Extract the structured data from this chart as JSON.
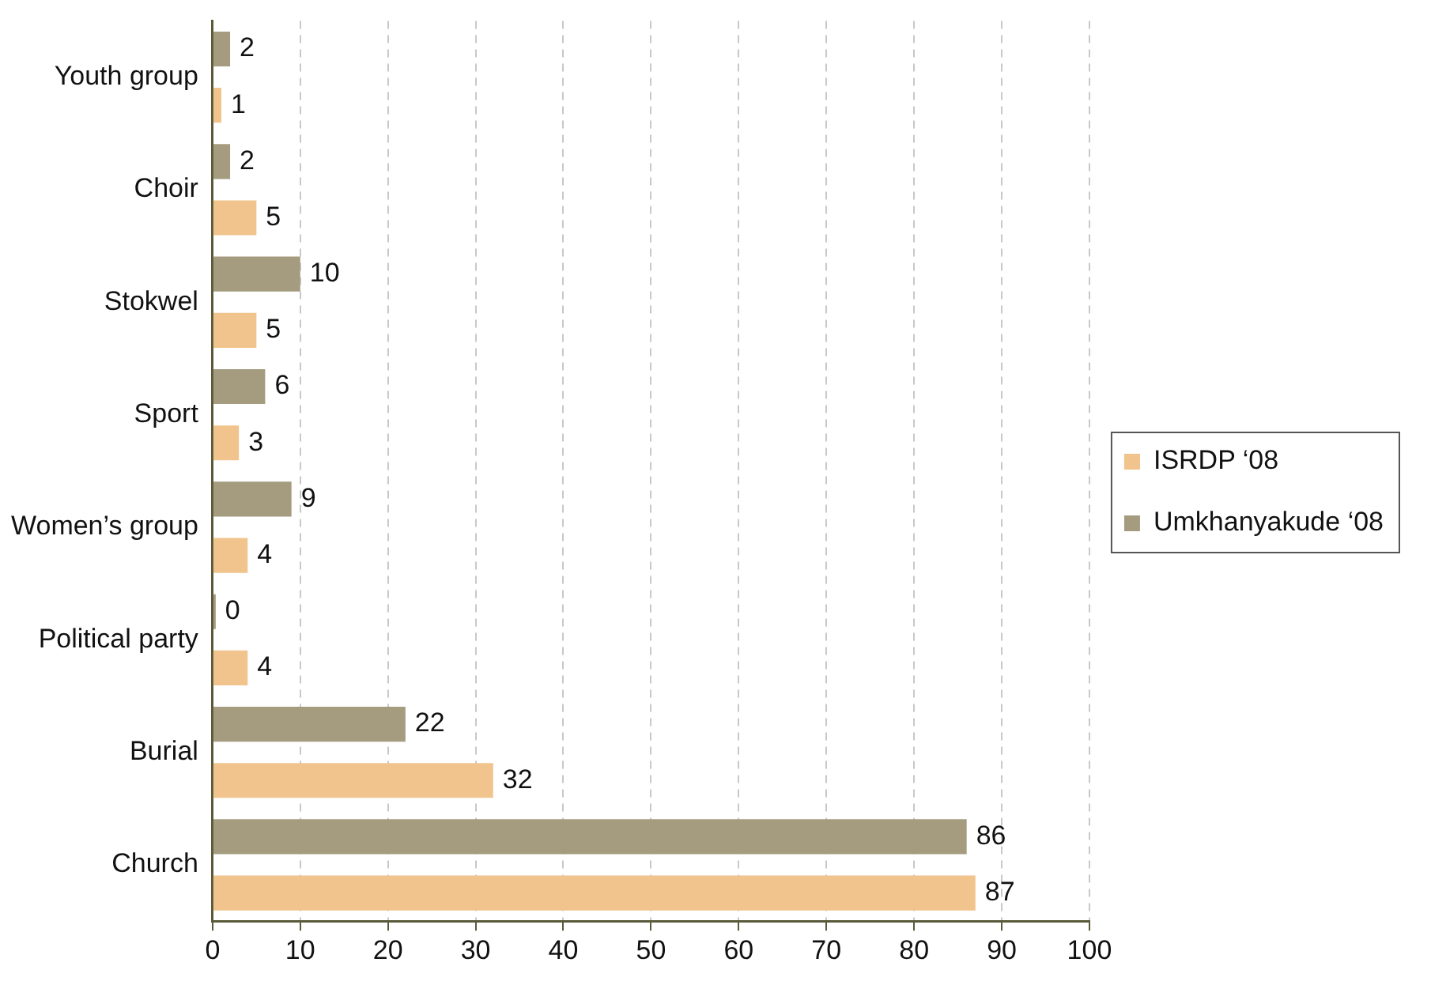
{
  "chart_data": {
    "type": "bar",
    "orientation": "horizontal",
    "categories": [
      "Youth group",
      "Choir",
      "Stokwel",
      "Sport",
      "Women’s group",
      "Political party",
      "Burial",
      "Church"
    ],
    "series": [
      {
        "name": "ISRDP ‘08",
        "color": "#f0c48c",
        "values": [
          1,
          5,
          5,
          3,
          4,
          4,
          32,
          87
        ]
      },
      {
        "name": "Umkhanyakude ‘08",
        "color": "#a59c80",
        "values": [
          2,
          2,
          10,
          6,
          9,
          0,
          22,
          86
        ]
      }
    ],
    "xlim": [
      0,
      100
    ],
    "xticks": [
      0,
      10,
      20,
      30,
      40,
      50,
      60,
      70,
      80,
      90,
      100
    ],
    "grid": "x",
    "legend": "right",
    "data_labels": true
  }
}
